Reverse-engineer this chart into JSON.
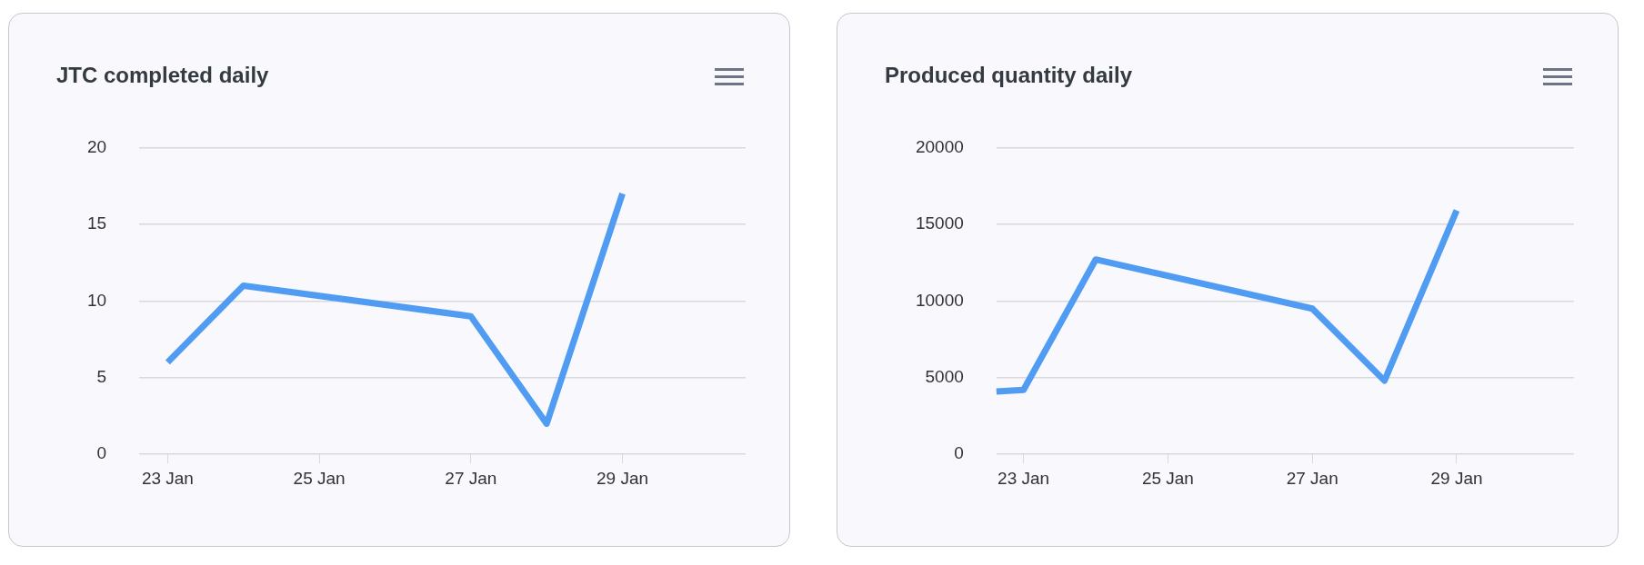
{
  "chart_data": [
    {
      "type": "line",
      "title": "JTC completed daily",
      "x": [
        "--01-23",
        "--01-24",
        "--01-27",
        "--01-28",
        "--01-29"
      ],
      "values": [
        6,
        11,
        9,
        2,
        17
      ],
      "color": "#4f9cf2",
      "xlim": [
        "--01-22T15:00",
        "--01-30T15:00"
      ],
      "xticks": [
        {
          "value": "--01-23",
          "label": "23 Jan"
        },
        {
          "value": "--01-25",
          "label": "25 Jan"
        },
        {
          "value": "--01-27",
          "label": "27 Jan"
        },
        {
          "value": "--01-29",
          "label": "29 Jan"
        }
      ],
      "ylim": [
        0,
        20
      ],
      "yticks": [
        0,
        5,
        10,
        15,
        20
      ],
      "grid": "y",
      "marker": "none"
    },
    {
      "type": "line",
      "title": "Produced quantity daily",
      "x": [
        "--01-22T15:00",
        "--01-23",
        "--01-24",
        "--01-27",
        "--01-28",
        "--01-29"
      ],
      "values": [
        4100,
        4200,
        12700,
        9500,
        4800,
        15900
      ],
      "color": "#4f9cf2",
      "xlim": [
        "--01-22T15:00",
        "--01-30T15:00"
      ],
      "xticks": [
        {
          "value": "--01-23",
          "label": "23 Jan"
        },
        {
          "value": "--01-25",
          "label": "25 Jan"
        },
        {
          "value": "--01-27",
          "label": "27 Jan"
        },
        {
          "value": "--01-29",
          "label": "29 Jan"
        }
      ],
      "ylim": [
        0,
        20000
      ],
      "yticks": [
        0,
        5000,
        10000,
        15000,
        20000
      ],
      "grid": "y",
      "marker": "none"
    }
  ]
}
